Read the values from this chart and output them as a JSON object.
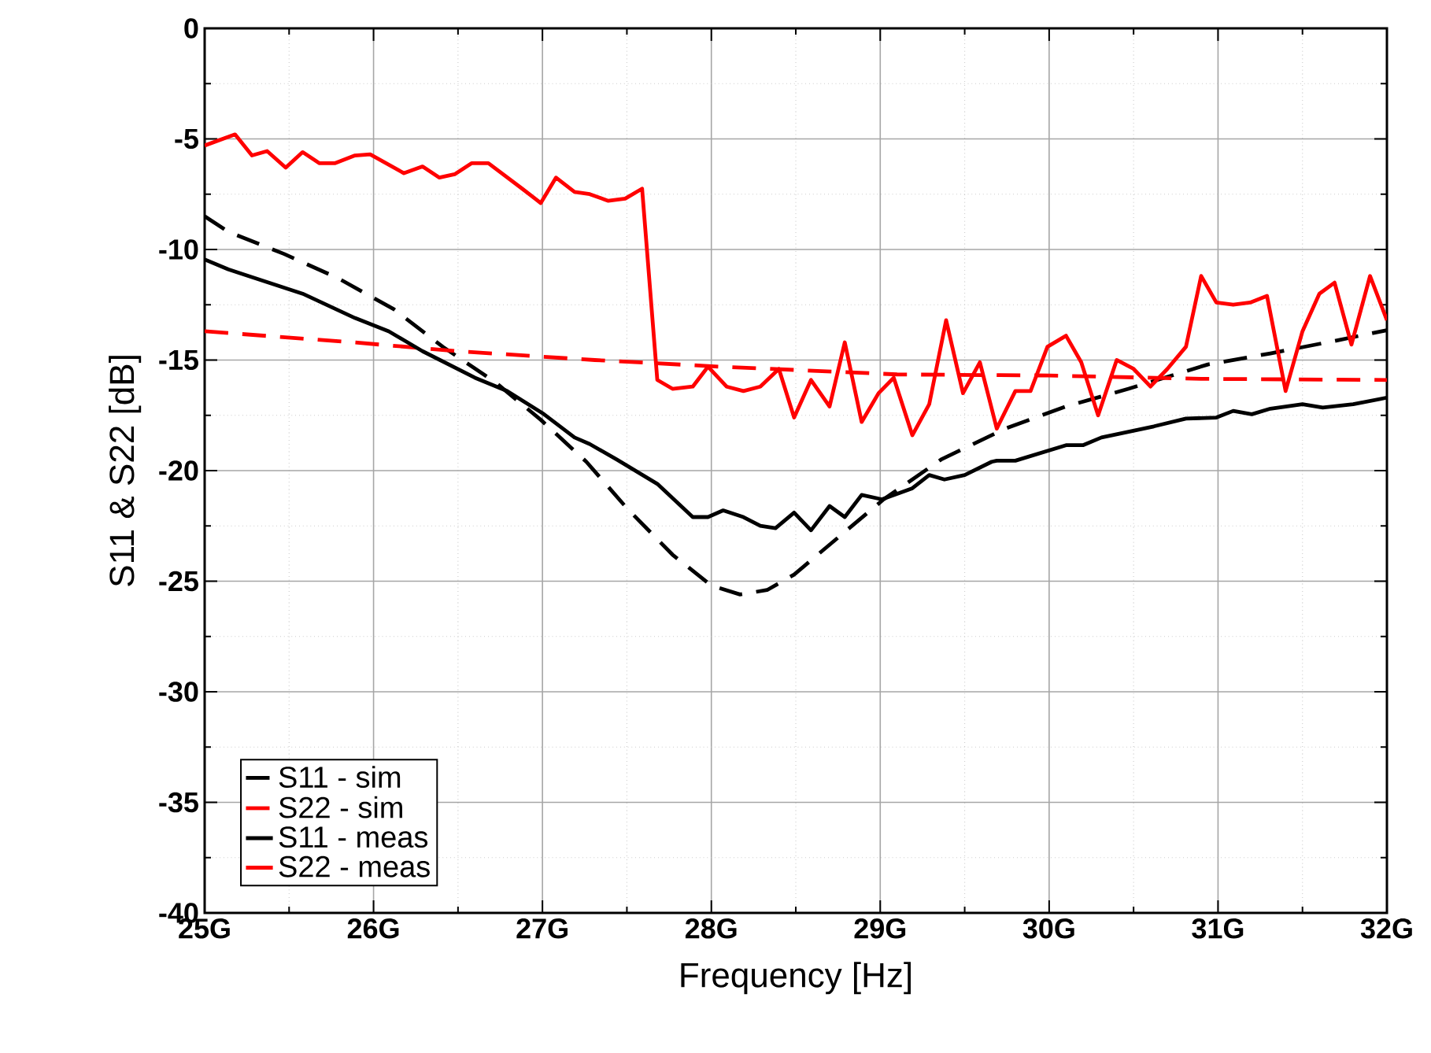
{
  "chart_data": {
    "type": "line",
    "xlabel": "Frequency [Hz]",
    "ylabel": "S11 & S22 [dB]",
    "xlim": [
      25,
      32
    ],
    "ylim": [
      -40,
      0
    ],
    "xticks": [
      {
        "value": 25,
        "label": "25G"
      },
      {
        "value": 26,
        "label": "26G"
      },
      {
        "value": 27,
        "label": "27G"
      },
      {
        "value": 28,
        "label": "28G"
      },
      {
        "value": 29,
        "label": "29G"
      },
      {
        "value": 30,
        "label": "30G"
      },
      {
        "value": 31,
        "label": "31G"
      },
      {
        "value": 32,
        "label": "32G"
      }
    ],
    "yticks": [
      -40,
      -35,
      -30,
      -25,
      -20,
      -15,
      -10,
      -5,
      0
    ],
    "grid": true,
    "legend": "bottom left",
    "series": [
      {
        "name": "S11 - sim",
        "color": "#000000",
        "line_style": "dashed",
        "x": [
          25.0,
          25.14,
          25.47,
          25.79,
          26.12,
          26.41,
          26.72,
          26.99,
          27.26,
          27.5,
          27.77,
          28.0,
          28.17,
          28.33,
          28.49,
          28.77,
          29.02,
          29.36,
          29.74,
          30.1,
          30.47,
          30.94,
          31.31,
          31.68,
          32.0
        ],
        "values": [
          -8.5,
          -9.2,
          -10.2,
          -11.3,
          -12.7,
          -14.4,
          -16.0,
          -17.7,
          -19.6,
          -21.7,
          -23.8,
          -25.2,
          -25.6,
          -25.4,
          -24.7,
          -22.9,
          -21.3,
          -19.5,
          -18.1,
          -17.1,
          -16.3,
          -15.2,
          -14.7,
          -14.15,
          -13.65
        ]
      },
      {
        "name": "S22 - sim",
        "color": "#ff0000",
        "line_style": "dashed",
        "x": [
          25.0,
          25.88,
          26.5,
          27.31,
          28.05,
          29.1,
          30.0,
          30.9,
          32.0
        ],
        "values": [
          -13.7,
          -14.2,
          -14.6,
          -15.0,
          -15.3,
          -15.65,
          -15.7,
          -15.85,
          -15.9
        ]
      },
      {
        "name": "S11 - meas",
        "color": "#000000",
        "line_style": "solid",
        "x": [
          25.0,
          25.14,
          25.26,
          25.58,
          25.89,
          26.09,
          26.29,
          26.6,
          26.79,
          27.0,
          27.19,
          27.28,
          27.44,
          27.68,
          27.89,
          27.98,
          28.07,
          28.19,
          28.29,
          28.38,
          28.49,
          28.59,
          28.7,
          28.79,
          28.89,
          29.01,
          29.19,
          29.29,
          29.38,
          29.5,
          29.66,
          29.69,
          29.8,
          30.1,
          30.2,
          30.31,
          30.62,
          30.81,
          30.99,
          31.09,
          31.2,
          31.31,
          31.5,
          31.62,
          31.8,
          32.0
        ],
        "values": [
          -10.45,
          -10.9,
          -11.2,
          -12.0,
          -13.1,
          -13.7,
          -14.6,
          -15.8,
          -16.4,
          -17.4,
          -18.5,
          -18.8,
          -19.5,
          -20.6,
          -22.1,
          -22.1,
          -21.8,
          -22.1,
          -22.5,
          -22.6,
          -21.9,
          -22.7,
          -21.6,
          -22.1,
          -21.1,
          -21.3,
          -20.8,
          -20.2,
          -20.4,
          -20.2,
          -19.6,
          -19.55,
          -19.55,
          -18.85,
          -18.85,
          -18.5,
          -18.0,
          -17.65,
          -17.6,
          -17.3,
          -17.45,
          -17.2,
          -17.0,
          -17.15,
          -17.0,
          -16.7
        ]
      },
      {
        "name": "S22 - meas",
        "color": "#ff0000",
        "line_style": "solid",
        "x": [
          25.0,
          25.18,
          25.28,
          25.37,
          25.48,
          25.58,
          25.68,
          25.77,
          25.89,
          25.98,
          26.18,
          26.29,
          26.39,
          26.48,
          26.58,
          26.68,
          26.88,
          26.99,
          27.08,
          27.19,
          27.28,
          27.39,
          27.49,
          27.59,
          27.68,
          27.77,
          27.89,
          27.98,
          28.09,
          28.19,
          28.29,
          28.4,
          28.49,
          28.59,
          28.7,
          28.79,
          28.89,
          28.99,
          29.08,
          29.19,
          29.29,
          29.39,
          29.49,
          29.59,
          29.69,
          29.8,
          29.89,
          29.99,
          30.1,
          30.19,
          30.29,
          30.4,
          30.5,
          30.6,
          30.7,
          30.81,
          30.9,
          30.99,
          31.09,
          31.19,
          31.29,
          31.4,
          31.5,
          31.6,
          31.69,
          31.79,
          31.9,
          32.0
        ],
        "values": [
          -5.3,
          -4.8,
          -5.75,
          -5.55,
          -6.3,
          -5.6,
          -6.1,
          -6.1,
          -5.75,
          -5.7,
          -6.55,
          -6.25,
          -6.75,
          -6.6,
          -6.1,
          -6.1,
          -7.25,
          -7.9,
          -6.75,
          -7.4,
          -7.5,
          -7.8,
          -7.7,
          -7.25,
          -15.9,
          -16.3,
          -16.2,
          -15.3,
          -16.2,
          -16.4,
          -16.2,
          -15.4,
          -17.6,
          -15.9,
          -17.1,
          -14.2,
          -17.8,
          -16.5,
          -15.8,
          -18.4,
          -17.0,
          -13.2,
          -16.5,
          -15.1,
          -18.1,
          -16.4,
          -16.4,
          -14.4,
          -13.9,
          -15.1,
          -17.5,
          -15.0,
          -15.4,
          -16.2,
          -15.4,
          -14.4,
          -11.2,
          -12.4,
          -12.5,
          -12.4,
          -12.1,
          -16.4,
          -13.7,
          -12.0,
          -11.5,
          -14.3,
          -11.2,
          -13.2
        ]
      }
    ]
  }
}
